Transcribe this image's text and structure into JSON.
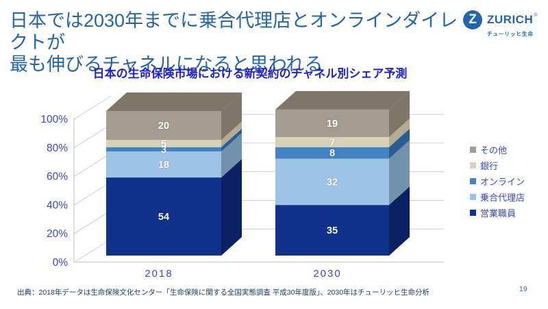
{
  "slide": {
    "title_line1": "日本では2030年までに乗合代理店とオンラインダイレクトが",
    "title_line2": "最も伸びるチャネルになると思われる",
    "source": "出典：2018年データは生命保険文化センター「生命保険に関する全国実態調査 平成30年度版」、2030年はチューリッヒ生命分析",
    "page_number": "19"
  },
  "logo": {
    "mark": "Z",
    "brand": "ZURICH",
    "registered": "®",
    "subtext": "チューリッヒ生命",
    "brand_color": "#2166AD"
  },
  "chart_data": {
    "type": "bar",
    "stacked": true,
    "effect_3d": true,
    "title": "日本の生命保険市場における新契約のチャネル別シェア予測",
    "categories": [
      "2018",
      "2030"
    ],
    "series": [
      {
        "name": "営業職員",
        "values": [
          54,
          35
        ],
        "color": "#10328C",
        "side_color": "#0A2164"
      },
      {
        "name": "乗合代理店",
        "values": [
          18,
          32
        ],
        "color": "#9CC2E5",
        "side_color": "#7291AB"
      },
      {
        "name": "オンライン",
        "values": [
          3,
          8
        ],
        "color": "#4283C3",
        "side_color": "#2A5E92"
      },
      {
        "name": "銀行",
        "values": [
          5,
          7
        ],
        "color": "#D8D1B5",
        "side_color": "#B3AC90"
      },
      {
        "name": "その他",
        "values": [
          20,
          19
        ],
        "color": "#A39C8F",
        "side_color": "#7D7669"
      }
    ],
    "y_axis": {
      "min": 0,
      "max": 100,
      "unit": "%",
      "ticks": [
        "0%",
        "20%",
        "40%",
        "60%",
        "80%",
        "100%"
      ]
    },
    "gridlines": true,
    "legend_position": "right",
    "legend_order_top_to_bottom": [
      "その他",
      "銀行",
      "オンライン",
      "乗合代理店",
      "営業職員"
    ],
    "value_label_color": "#FFFFFF",
    "axis_text_color": "#3B46CF",
    "grid_color": "#C9CBE8"
  }
}
